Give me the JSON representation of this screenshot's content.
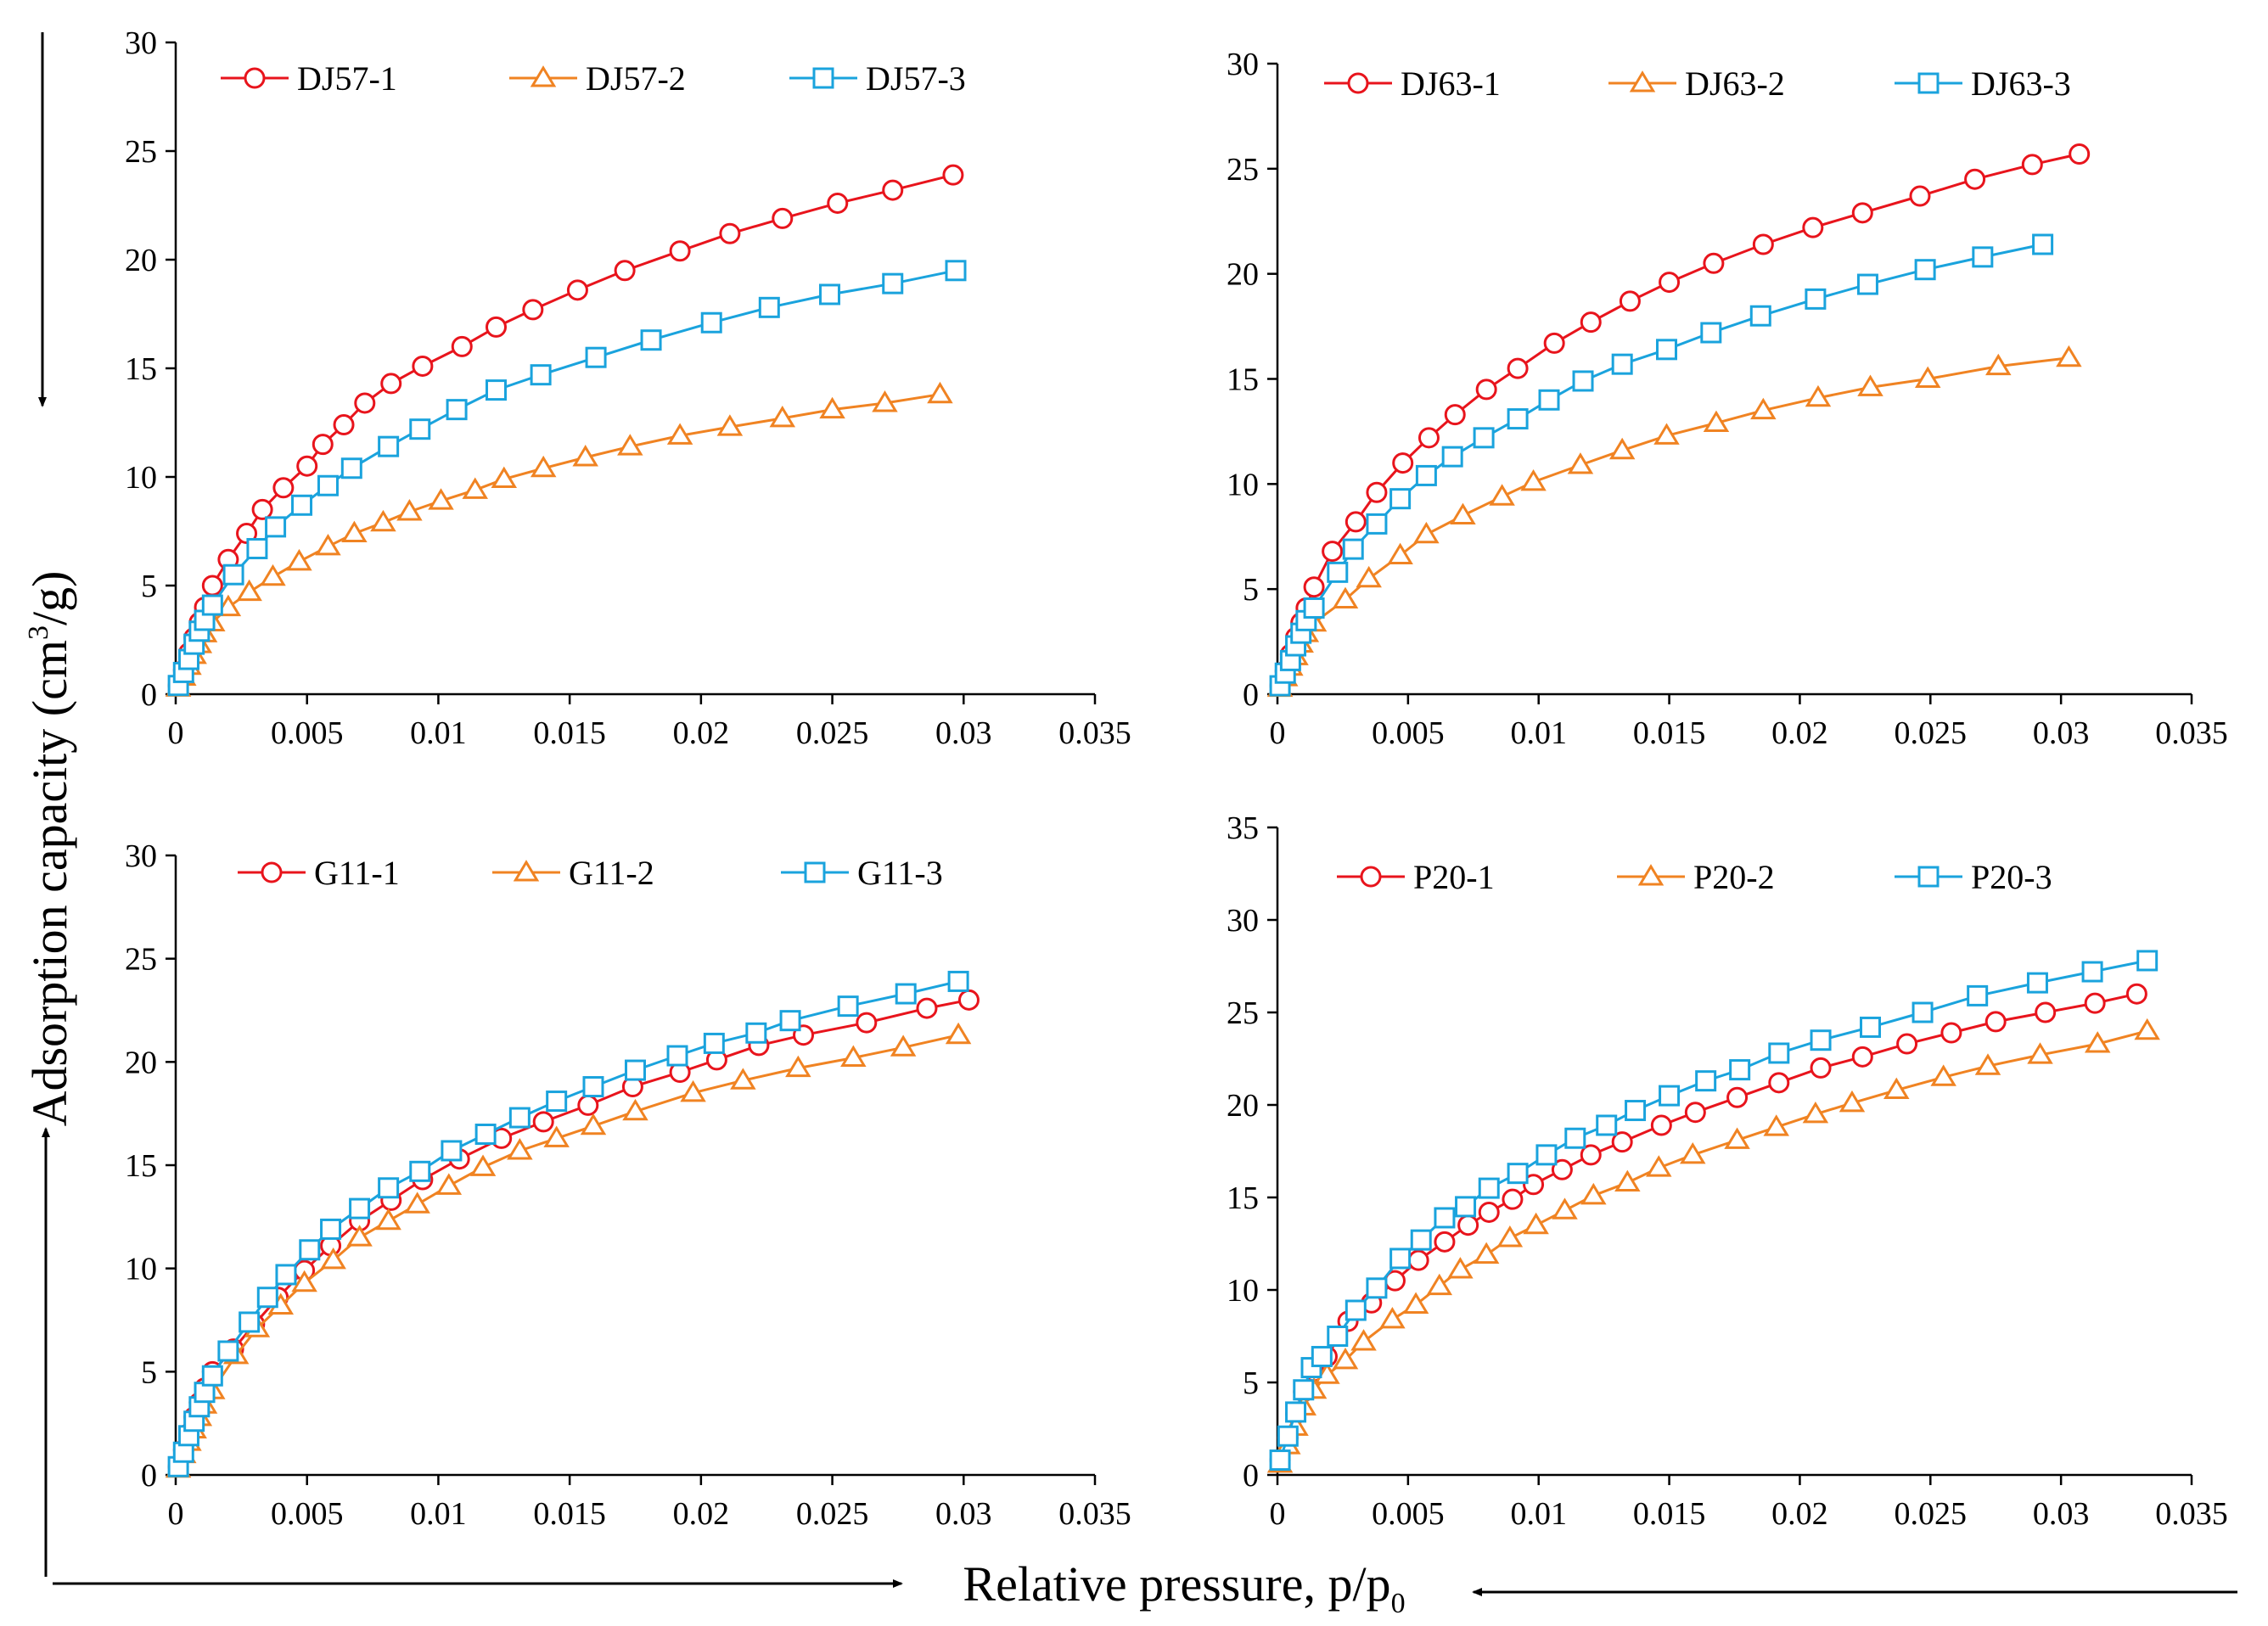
{
  "figure": {
    "shared_ylabel_main": "Adsorption capacity (cm",
    "shared_ylabel_sup": "3",
    "shared_ylabel_tail": "/g)",
    "shared_xlabel_main": "Relative pressure, p/p",
    "shared_xlabel_sub": "0"
  },
  "colors": {
    "s1": "#e8141c",
    "s2": "#f08322",
    "s3": "#1aa3dd"
  },
  "chart_data": [
    {
      "type": "line",
      "panel": "top-left",
      "xlim": [
        0,
        0.035
      ],
      "ylim": [
        0,
        30
      ],
      "xticks": [
        "0",
        "0.005",
        "0.01",
        "0.015",
        "0.02",
        "0.025",
        "0.03",
        "0.035"
      ],
      "yticks": [
        "0",
        "5",
        "10",
        "15",
        "20",
        "25",
        "30"
      ],
      "series": [
        {
          "name": "DJ57-1",
          "marker": "circle",
          "x": [
            0.0001,
            0.0003,
            0.0005,
            0.0007,
            0.0009,
            0.0011,
            0.0014,
            0.002,
            0.0027,
            0.0033,
            0.0041,
            0.005,
            0.0056,
            0.0064,
            0.0072,
            0.0082,
            0.0094,
            0.0109,
            0.0122,
            0.0136,
            0.0153,
            0.0171,
            0.0192,
            0.0211,
            0.0231,
            0.0252,
            0.0273,
            0.0296
          ],
          "y": [
            0.4,
            1.1,
            1.9,
            2.6,
            3.3,
            4.0,
            5.0,
            6.2,
            7.4,
            8.5,
            9.5,
            10.5,
            11.5,
            12.4,
            13.4,
            14.3,
            15.1,
            16.0,
            16.9,
            17.7,
            18.6,
            19.5,
            20.4,
            21.2,
            21.9,
            22.6,
            23.2,
            23.9
          ]
        },
        {
          "name": "DJ57-2",
          "marker": "triangle",
          "x": [
            0.0001,
            0.0003,
            0.0005,
            0.0007,
            0.0009,
            0.0011,
            0.0014,
            0.002,
            0.0028,
            0.0037,
            0.0047,
            0.0058,
            0.0068,
            0.0079,
            0.0089,
            0.0101,
            0.0114,
            0.0125,
            0.014,
            0.0156,
            0.0173,
            0.0192,
            0.0211,
            0.0231,
            0.025,
            0.027,
            0.0291
          ],
          "y": [
            0.3,
            0.8,
            1.3,
            1.8,
            2.3,
            2.8,
            3.3,
            4.0,
            4.7,
            5.4,
            6.1,
            6.8,
            7.4,
            7.9,
            8.4,
            8.9,
            9.4,
            9.9,
            10.4,
            10.9,
            11.4,
            11.9,
            12.3,
            12.7,
            13.1,
            13.4,
            13.8
          ]
        },
        {
          "name": "DJ57-3",
          "marker": "square",
          "x": [
            0.0001,
            0.0003,
            0.0005,
            0.0007,
            0.0009,
            0.0011,
            0.0014,
            0.0022,
            0.0031,
            0.0038,
            0.0048,
            0.0058,
            0.0067,
            0.0081,
            0.0093,
            0.0107,
            0.0122,
            0.0139,
            0.016,
            0.0181,
            0.0204,
            0.0226,
            0.0249,
            0.0273,
            0.0297
          ],
          "y": [
            0.4,
            1.0,
            1.6,
            2.3,
            2.9,
            3.4,
            4.1,
            5.5,
            6.7,
            7.7,
            8.7,
            9.6,
            10.4,
            11.4,
            12.2,
            13.1,
            14.0,
            14.7,
            15.5,
            16.3,
            17.1,
            17.8,
            18.4,
            18.9,
            19.5
          ]
        }
      ]
    },
    {
      "type": "line",
      "panel": "top-right",
      "xlim": [
        0,
        0.035
      ],
      "ylim": [
        0,
        30
      ],
      "xticks": [
        "0",
        "0.005",
        "0.01",
        "0.015",
        "0.02",
        "0.025",
        "0.03",
        "0.035"
      ],
      "yticks": [
        "0",
        "5",
        "10",
        "15",
        "20",
        "25",
        "30"
      ],
      "series": [
        {
          "name": "DJ63-1",
          "marker": "circle",
          "x": [
            0.0001,
            0.0003,
            0.0005,
            0.0007,
            0.0009,
            0.0011,
            0.0014,
            0.0021,
            0.003,
            0.0038,
            0.0048,
            0.0058,
            0.0068,
            0.008,
            0.0092,
            0.0106,
            0.012,
            0.0135,
            0.015,
            0.0167,
            0.0186,
            0.0205,
            0.0224,
            0.0246,
            0.0267,
            0.0289,
            0.0307
          ],
          "y": [
            0.4,
            1.1,
            1.9,
            2.7,
            3.4,
            4.1,
            5.1,
            6.8,
            8.2,
            9.6,
            11.0,
            12.2,
            13.3,
            14.5,
            15.5,
            16.7,
            17.7,
            18.7,
            19.6,
            20.5,
            21.4,
            22.2,
            22.9,
            23.7,
            24.5,
            25.2,
            25.7
          ]
        },
        {
          "name": "DJ63-2",
          "marker": "triangle",
          "x": [
            0.0001,
            0.0003,
            0.0005,
            0.0007,
            0.0009,
            0.0011,
            0.0014,
            0.0026,
            0.0035,
            0.0047,
            0.0057,
            0.0071,
            0.0086,
            0.0098,
            0.0116,
            0.0132,
            0.0149,
            0.0168,
            0.0186,
            0.0207,
            0.0227,
            0.0249,
            0.0276,
            0.0303
          ],
          "y": [
            0.3,
            0.8,
            1.3,
            1.8,
            2.4,
            2.9,
            3.4,
            4.5,
            5.5,
            6.6,
            7.6,
            8.5,
            9.4,
            10.1,
            10.9,
            11.6,
            12.3,
            12.9,
            13.5,
            14.1,
            14.6,
            15.0,
            15.6,
            16.0
          ]
        },
        {
          "name": "DJ63-3",
          "marker": "square",
          "x": [
            0.0001,
            0.0003,
            0.0005,
            0.0007,
            0.0009,
            0.0011,
            0.0014,
            0.0023,
            0.0029,
            0.0038,
            0.0047,
            0.0057,
            0.0067,
            0.0079,
            0.0092,
            0.0104,
            0.0117,
            0.0132,
            0.0149,
            0.0166,
            0.0185,
            0.0206,
            0.0226,
            0.0248,
            0.027,
            0.0293
          ],
          "y": [
            0.4,
            1.0,
            1.6,
            2.3,
            2.9,
            3.5,
            4.1,
            5.8,
            6.9,
            8.1,
            9.3,
            10.4,
            11.3,
            12.2,
            13.1,
            14.0,
            14.9,
            15.7,
            16.4,
            17.2,
            18.0,
            18.8,
            19.5,
            20.2,
            20.8,
            21.4
          ]
        }
      ]
    },
    {
      "type": "line",
      "panel": "bottom-left",
      "xlim": [
        0,
        0.035
      ],
      "ylim": [
        0,
        30
      ],
      "xticks": [
        "0",
        "0.005",
        "0.01",
        "0.015",
        "0.02",
        "0.025",
        "0.03",
        "0.035"
      ],
      "yticks": [
        "0",
        "5",
        "10",
        "15",
        "20",
        "25",
        "30"
      ],
      "series": [
        {
          "name": "G11-1",
          "marker": "circle",
          "x": [
            0.0001,
            0.0003,
            0.0005,
            0.0007,
            0.0009,
            0.0011,
            0.0014,
            0.0022,
            0.003,
            0.0039,
            0.0049,
            0.0059,
            0.007,
            0.0082,
            0.0094,
            0.0108,
            0.0124,
            0.014,
            0.0157,
            0.0174,
            0.0192,
            0.0206,
            0.0222,
            0.0239,
            0.0263,
            0.0286,
            0.0302
          ],
          "y": [
            0.4,
            1.2,
            2.0,
            2.8,
            3.5,
            4.2,
            5.0,
            6.1,
            7.3,
            8.6,
            9.9,
            11.1,
            12.3,
            13.3,
            14.3,
            15.3,
            16.3,
            17.1,
            17.9,
            18.8,
            19.5,
            20.1,
            20.8,
            21.3,
            21.9,
            22.6,
            23.0
          ]
        },
        {
          "name": "G11-2",
          "marker": "triangle",
          "x": [
            0.0001,
            0.0003,
            0.0005,
            0.0007,
            0.0009,
            0.0011,
            0.0014,
            0.0023,
            0.0031,
            0.004,
            0.0049,
            0.006,
            0.007,
            0.0081,
            0.0092,
            0.0104,
            0.0117,
            0.0131,
            0.0145,
            0.0159,
            0.0175,
            0.0197,
            0.0216,
            0.0237,
            0.0258,
            0.0277,
            0.0298
          ],
          "y": [
            0.3,
            1.0,
            1.6,
            2.2,
            2.8,
            3.4,
            4.1,
            5.8,
            7.1,
            8.2,
            9.3,
            10.4,
            11.5,
            12.3,
            13.1,
            14.0,
            14.9,
            15.7,
            16.3,
            16.9,
            17.6,
            18.5,
            19.1,
            19.7,
            20.2,
            20.7,
            21.3
          ]
        },
        {
          "name": "G11-3",
          "marker": "square",
          "x": [
            0.0001,
            0.0003,
            0.0005,
            0.0007,
            0.0009,
            0.0011,
            0.0014,
            0.002,
            0.0028,
            0.0035,
            0.0042,
            0.0051,
            0.0059,
            0.007,
            0.0081,
            0.0093,
            0.0105,
            0.0118,
            0.0131,
            0.0145,
            0.0159,
            0.0175,
            0.0191,
            0.0205,
            0.0221,
            0.0234,
            0.0256,
            0.0278,
            0.0298
          ],
          "y": [
            0.4,
            1.1,
            1.9,
            2.6,
            3.3,
            4.0,
            4.8,
            6.0,
            7.4,
            8.6,
            9.7,
            10.9,
            11.9,
            12.9,
            13.9,
            14.7,
            15.7,
            16.5,
            17.3,
            18.1,
            18.8,
            19.6,
            20.3,
            20.9,
            21.4,
            22.0,
            22.7,
            23.3,
            23.9
          ]
        }
      ]
    },
    {
      "type": "line",
      "panel": "bottom-right",
      "xlim": [
        0,
        0.035
      ],
      "ylim": [
        0,
        35
      ],
      "xticks": [
        "0",
        "0.005",
        "0.01",
        "0.015",
        "0.02",
        "0.025",
        "0.03",
        "0.035"
      ],
      "yticks": [
        "0",
        "5",
        "10",
        "15",
        "20",
        "25",
        "30",
        "35"
      ],
      "series": [
        {
          "name": "P20-1",
          "marker": "circle",
          "x": [
            0.0001,
            0.0004,
            0.0007,
            0.001,
            0.0014,
            0.0019,
            0.0027,
            0.0036,
            0.0045,
            0.0054,
            0.0064,
            0.0073,
            0.0081,
            0.009,
            0.0098,
            0.0109,
            0.012,
            0.0132,
            0.0147,
            0.016,
            0.0176,
            0.0192,
            0.0208,
            0.0224,
            0.0241,
            0.0258,
            0.0275,
            0.0294,
            0.0313,
            0.0329
          ],
          "y": [
            0.8,
            2.0,
            3.3,
            4.5,
            5.6,
            6.4,
            8.3,
            9.3,
            10.5,
            11.6,
            12.6,
            13.5,
            14.2,
            14.9,
            15.7,
            16.5,
            17.3,
            18.0,
            18.9,
            19.6,
            20.4,
            21.2,
            22.0,
            22.6,
            23.3,
            23.9,
            24.5,
            25.0,
            25.5,
            26.0
          ]
        },
        {
          "name": "P20-2",
          "marker": "triangle",
          "x": [
            0.0001,
            0.0004,
            0.0007,
            0.001,
            0.0014,
            0.0019,
            0.0026,
            0.0033,
            0.0044,
            0.0053,
            0.0062,
            0.007,
            0.008,
            0.0089,
            0.0099,
            0.011,
            0.0121,
            0.0134,
            0.0146,
            0.0159,
            0.0176,
            0.0191,
            0.0206,
            0.022,
            0.0237,
            0.0255,
            0.0272,
            0.0292,
            0.0314,
            0.0333
          ],
          "y": [
            0.6,
            1.6,
            2.6,
            3.7,
            4.6,
            5.4,
            6.2,
            7.2,
            8.4,
            9.2,
            10.2,
            11.1,
            11.9,
            12.8,
            13.5,
            14.3,
            15.1,
            15.8,
            16.6,
            17.3,
            18.1,
            18.8,
            19.5,
            20.1,
            20.8,
            21.5,
            22.1,
            22.7,
            23.3,
            24.0
          ]
        },
        {
          "name": "P20-3",
          "marker": "square",
          "x": [
            0.0001,
            0.0004,
            0.0007,
            0.001,
            0.0013,
            0.0017,
            0.0023,
            0.003,
            0.0038,
            0.0047,
            0.0055,
            0.0064,
            0.0072,
            0.0081,
            0.0092,
            0.0103,
            0.0114,
            0.0126,
            0.0137,
            0.015,
            0.0164,
            0.0177,
            0.0192,
            0.0208,
            0.0227,
            0.0247,
            0.0268,
            0.0291,
            0.0312,
            0.0333
          ],
          "y": [
            0.8,
            2.1,
            3.4,
            4.6,
            5.8,
            6.4,
            7.5,
            8.9,
            10.1,
            11.7,
            12.7,
            13.9,
            14.5,
            15.5,
            16.3,
            17.3,
            18.2,
            18.9,
            19.7,
            20.5,
            21.3,
            21.9,
            22.8,
            23.5,
            24.2,
            25.0,
            25.9,
            26.6,
            27.2,
            27.8
          ]
        }
      ]
    }
  ]
}
